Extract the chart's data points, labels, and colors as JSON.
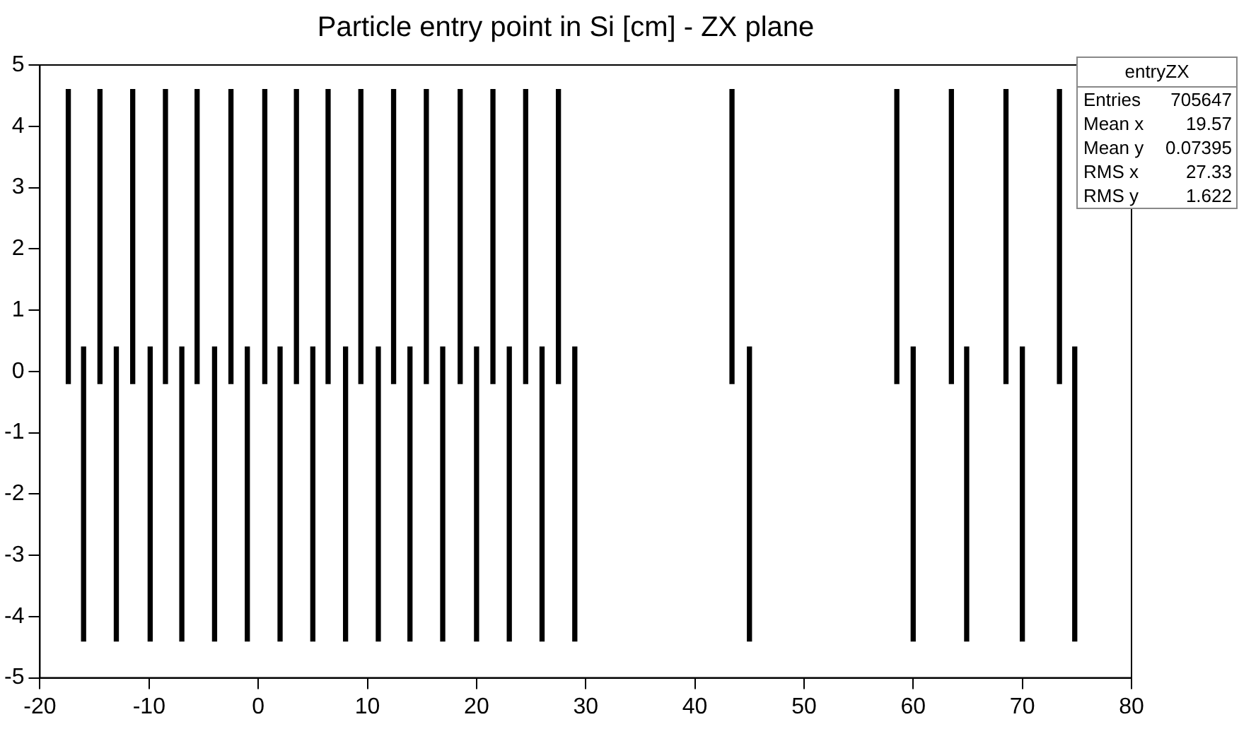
{
  "chart_data": {
    "type": "bar",
    "title": "Particle entry point in Si [cm] - ZX plane",
    "x": [
      -17.4,
      -16.0,
      -14.5,
      -13.0,
      -11.5,
      -9.9,
      -8.5,
      -7.0,
      -5.6,
      -4.0,
      -2.5,
      -1.0,
      0.6,
      2.0,
      3.5,
      5.0,
      6.4,
      8.0,
      9.4,
      11.0,
      12.4,
      13.9,
      15.4,
      16.9,
      18.5,
      20.0,
      21.5,
      23.0,
      24.5,
      26.0,
      27.5,
      29.0,
      43.4,
      45.0,
      58.5,
      60.0,
      63.5,
      64.9,
      68.5,
      70.0,
      73.4,
      74.8
    ],
    "base": [
      -0.2,
      -4.4,
      -0.2,
      -4.4,
      -0.2,
      -4.4,
      -0.2,
      -4.4,
      -0.2,
      -4.4,
      -0.2,
      -4.4,
      -0.2,
      -4.4,
      -0.2,
      -4.4,
      -0.2,
      -4.4,
      -0.2,
      -4.4,
      -0.2,
      -4.4,
      -0.2,
      -4.4,
      -0.2,
      -4.4,
      -0.2,
      -4.4,
      -0.2,
      -4.4,
      -0.2,
      -4.4,
      -0.2,
      -4.4,
      -0.2,
      -4.4,
      -0.2,
      -4.4,
      -0.2,
      -4.4,
      -0.2,
      -4.4
    ],
    "values": [
      4.8,
      4.8,
      4.8,
      4.8,
      4.8,
      4.8,
      4.8,
      4.8,
      4.8,
      4.8,
      4.8,
      4.8,
      4.8,
      4.8,
      4.8,
      4.8,
      4.8,
      4.8,
      4.8,
      4.8,
      4.8,
      4.8,
      4.8,
      4.8,
      4.8,
      4.8,
      4.8,
      4.8,
      4.8,
      4.8,
      4.8,
      4.8,
      4.8,
      4.8,
      4.8,
      4.8,
      4.8,
      4.8,
      4.8,
      4.8,
      4.8,
      4.8
    ],
    "color": "#000000",
    "xlim": [
      -20,
      80
    ],
    "xticks": [
      -20,
      -10,
      0,
      10,
      20,
      30,
      40,
      50,
      60,
      70,
      80
    ],
    "ylim": [
      -5,
      5
    ],
    "yticks": [
      -5,
      -4,
      -3,
      -2,
      -1,
      0,
      1,
      2,
      3,
      4,
      5
    ],
    "grid": false,
    "legend": false,
    "annotations": [
      "entryZX",
      "Entries",
      "705647",
      "Mean x",
      "19.57",
      "Mean y",
      "0.07395",
      "RMS x",
      "27.33",
      "RMS y",
      "1.622"
    ]
  }
}
